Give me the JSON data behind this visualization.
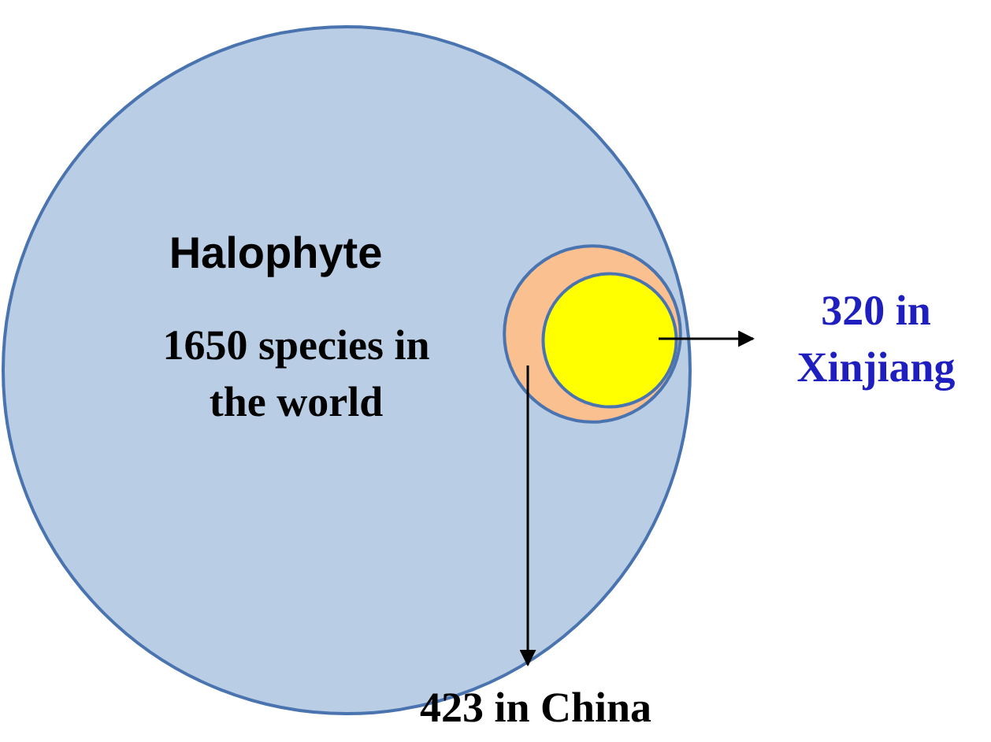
{
  "chart_data": {
    "type": "other",
    "title": "Halophyte",
    "categories": [
      "species in the world",
      "in China",
      "in Xinjiang"
    ],
    "values": [
      1650,
      423,
      320
    ],
    "value_labels": [
      "1650",
      "423",
      "320"
    ],
    "colors": [
      "#b9cde5",
      "#fac090",
      "#ffff00"
    ]
  }
}
